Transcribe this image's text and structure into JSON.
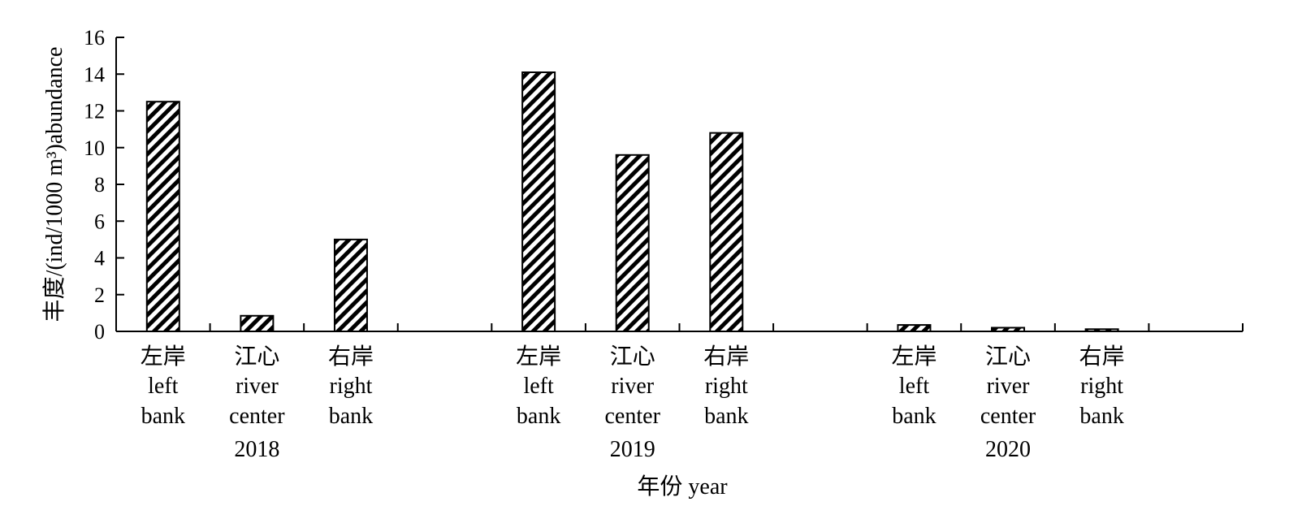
{
  "chart_data": {
    "type": "bar",
    "ylabel": "丰度/(ind/1000 m³)abundance",
    "xlabel": "年份 year",
    "ylim": [
      0,
      16
    ],
    "yticks": [
      "0",
      "2",
      "4",
      "6",
      "8",
      "10",
      "12",
      "14",
      "16"
    ],
    "groups": [
      {
        "year": "2018",
        "categories": [
          {
            "cn": "左岸",
            "en1": "left",
            "en2": "bank",
            "value": 12.5
          },
          {
            "cn": "江心",
            "en1": "river",
            "en2": "center",
            "value": 0.85
          },
          {
            "cn": "右岸",
            "en1": "right",
            "en2": "bank",
            "value": 5.0
          }
        ]
      },
      {
        "year": "2019",
        "categories": [
          {
            "cn": "左岸",
            "en1": "left",
            "en2": "bank",
            "value": 14.1
          },
          {
            "cn": "江心",
            "en1": "river",
            "en2": "center",
            "value": 9.6
          },
          {
            "cn": "右岸",
            "en1": "right",
            "en2": "bank",
            "value": 10.8
          }
        ]
      },
      {
        "year": "2020",
        "categories": [
          {
            "cn": "左岸",
            "en1": "left",
            "en2": "bank",
            "value": 0.35
          },
          {
            "cn": "江心",
            "en1": "river",
            "en2": "center",
            "value": 0.2
          },
          {
            "cn": "右岸",
            "en1": "right",
            "en2": "bank",
            "value": 0.12
          }
        ]
      }
    ],
    "bar_pattern": "diagonal-hatch",
    "bar_colors": {
      "fill": "#ffffff",
      "hatch": "#000000",
      "stroke": "#000000"
    }
  }
}
